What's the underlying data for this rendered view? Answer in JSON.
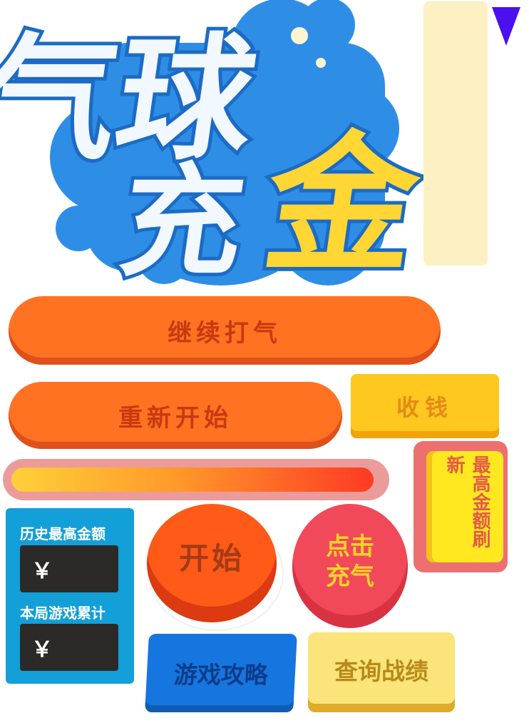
{
  "logo": {
    "line1": "气球",
    "line2_char1": "充",
    "line2_char2": "金"
  },
  "buttons": {
    "continue_pump": "继续打气",
    "restart": "重新开始",
    "collect_money": "收钱",
    "refresh_max": "最高金额刷新",
    "start": "开始",
    "click_inflate_line1": "点击",
    "click_inflate_line2": "充气",
    "game_guide": "游戏攻略",
    "query_records": "查询战绩"
  },
  "progress": {
    "fill_fraction": 0.98
  },
  "stats": {
    "history_max_label": "历史最高金额",
    "history_max_value": "￥",
    "round_total_label": "本局游戏累计",
    "round_total_value": "￥"
  },
  "colors": {
    "logo_blue": "#2e8ee6",
    "gold": "#ffd633",
    "pill_orange": "#ff7222",
    "accent_red": "#f1495a"
  },
  "icons": {
    "dropdown": "triangle-down-icon"
  }
}
